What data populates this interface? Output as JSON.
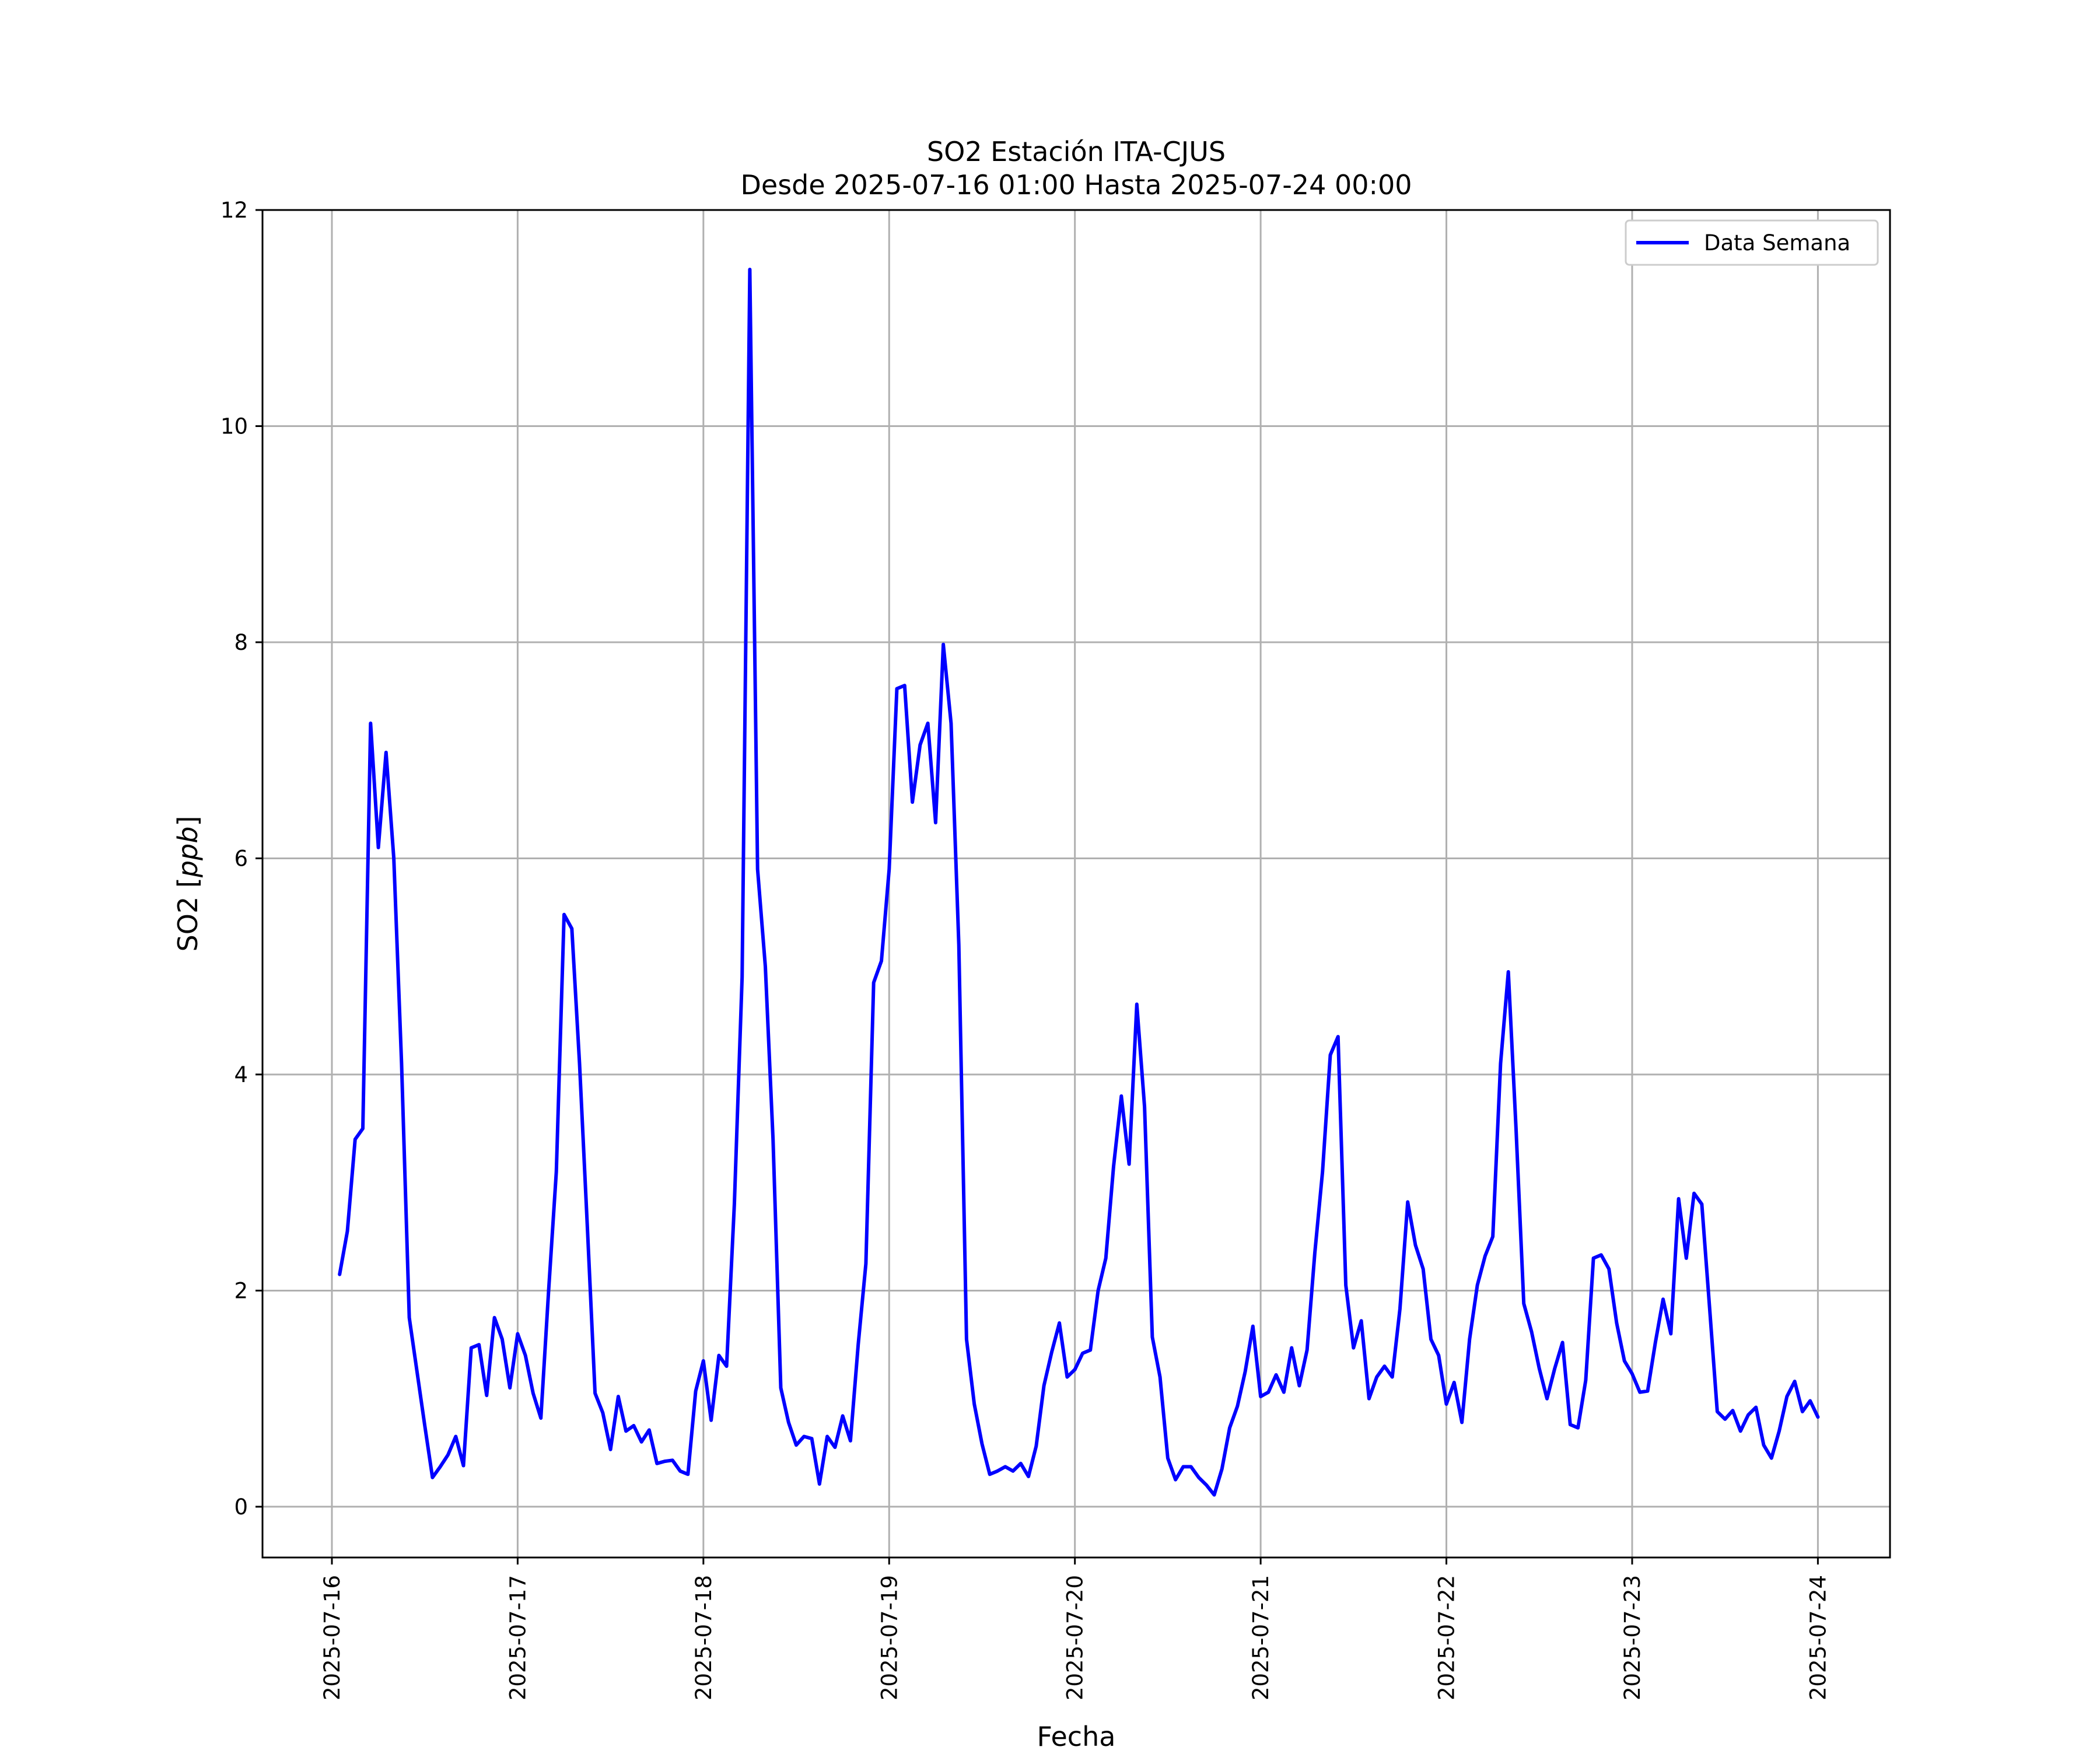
{
  "chart_data": {
    "type": "line",
    "title": "SO2 Estación ITA-CJUS",
    "subtitle": "Desde 2025-07-16 01:00 Hasta 2025-07-24 00:00",
    "xlabel": "Fecha",
    "ylabel": "SO2 [ppb]",
    "xlim": [
      "2025-07-15 15:02",
      "2025-07-24 09:19"
    ],
    "ylim": [
      -0.47,
      12
    ],
    "x_ticks": [
      "2025-07-16",
      "2025-07-17",
      "2025-07-18",
      "2025-07-19",
      "2025-07-20",
      "2025-07-21",
      "2025-07-22",
      "2025-07-23",
      "2025-07-24"
    ],
    "y_ticks": [
      0,
      2,
      4,
      6,
      8,
      10,
      12
    ],
    "grid": true,
    "legend_position": "top-right",
    "x_start": "2025-07-16 01:00",
    "x_step_hours": 1,
    "series": [
      {
        "name": "Data Semana",
        "color": "#0000ff",
        "values": [
          2.15,
          2.55,
          3.4,
          3.5,
          7.25,
          6.1,
          6.98,
          6.0,
          4.1,
          1.75,
          1.25,
          0.75,
          0.27,
          0.37,
          0.48,
          0.65,
          0.38,
          1.47,
          1.5,
          1.03,
          1.75,
          1.55,
          1.1,
          1.6,
          1.4,
          1.05,
          0.82,
          2.0,
          3.1,
          5.48,
          5.35,
          4.1,
          2.6,
          1.05,
          0.87,
          0.53,
          1.02,
          0.7,
          0.75,
          0.6,
          0.71,
          0.4,
          0.42,
          0.43,
          0.33,
          0.3,
          1.07,
          1.35,
          0.8,
          1.4,
          1.3,
          2.8,
          4.9,
          11.45,
          5.9,
          5.0,
          3.4,
          1.1,
          0.78,
          0.57,
          0.65,
          0.63,
          0.21,
          0.65,
          0.55,
          0.84,
          0.61,
          1.5,
          2.25,
          4.85,
          5.05,
          5.9,
          7.57,
          7.6,
          6.52,
          7.05,
          7.25,
          6.33,
          7.98,
          7.25,
          5.2,
          1.55,
          0.95,
          0.58,
          0.3,
          0.33,
          0.37,
          0.33,
          0.4,
          0.28,
          0.56,
          1.12,
          1.43,
          1.7,
          1.2,
          1.27,
          1.42,
          1.45,
          2.0,
          2.3,
          3.15,
          3.8,
          3.17,
          4.65,
          3.7,
          1.57,
          1.2,
          0.45,
          0.25,
          0.37,
          0.37,
          0.27,
          0.2,
          0.11,
          0.35,
          0.73,
          0.93,
          1.25,
          1.67,
          1.02,
          1.06,
          1.22,
          1.06,
          1.47,
          1.12,
          1.45,
          2.35,
          3.1,
          4.18,
          4.35,
          2.05,
          1.47,
          1.72,
          1.0,
          1.2,
          1.3,
          1.2,
          1.83,
          2.82,
          2.42,
          2.2,
          1.55,
          1.4,
          0.95,
          1.15,
          0.78,
          1.55,
          2.05,
          2.32,
          2.5,
          4.1,
          4.95,
          3.5,
          1.88,
          1.62,
          1.28,
          1.0,
          1.28,
          1.52,
          0.76,
          0.73,
          1.17,
          2.3,
          2.33,
          2.2,
          1.7,
          1.35,
          1.23,
          1.06,
          1.07,
          1.52,
          1.92,
          1.6,
          2.85,
          2.3,
          2.9,
          2.8,
          1.85,
          0.88,
          0.81,
          0.89,
          0.7,
          0.85,
          0.92,
          0.57,
          0.45,
          0.7,
          1.02,
          1.16,
          0.88,
          0.98,
          0.83
        ]
      }
    ]
  }
}
